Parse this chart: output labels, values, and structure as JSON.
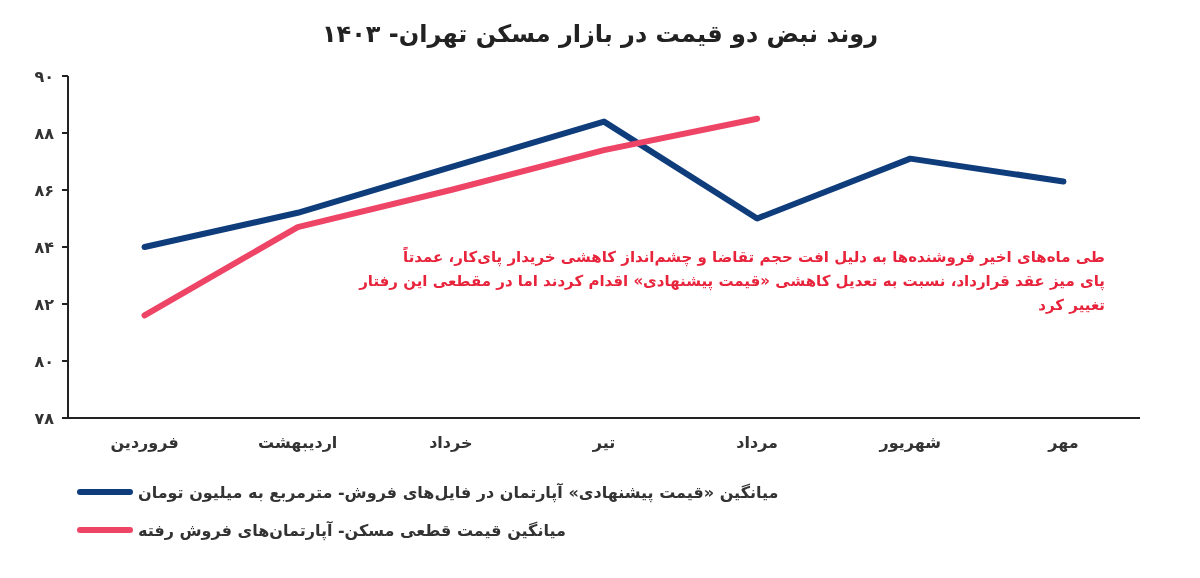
{
  "chart_data": {
    "type": "line",
    "title": "روند نبض دو قیمت در بازار مسکن تهران- ۱۴۰۳",
    "categories": [
      "فروردین",
      "اردیبهشت",
      "خرداد",
      "تیر",
      "مرداد",
      "شهریور",
      "مهر"
    ],
    "series": [
      {
        "name": "میانگین «قیمت پیشنهادی» آپارتمان در فایل‌های فروش- مترمربع به میلیون تومان",
        "color": "#0f3d7c",
        "values": [
          84.0,
          85.2,
          86.8,
          88.4,
          85.0,
          87.1,
          86.3
        ]
      },
      {
        "name": "میانگین قیمت قطعی مسکن- آپارتمان‌های فروش رفته",
        "color": "#ee4466",
        "values": [
          81.6,
          84.7,
          86.0,
          87.4,
          88.5,
          null,
          null
        ]
      }
    ],
    "ylim": [
      78,
      90
    ],
    "yticks": [
      {
        "value": 78,
        "label": "۷۸"
      },
      {
        "value": 80,
        "label": "۸۰"
      },
      {
        "value": 82,
        "label": "۸۲"
      },
      {
        "value": 84,
        "label": "۸۴"
      },
      {
        "value": 86,
        "label": "۸۶"
      },
      {
        "value": 88,
        "label": "۸۸"
      },
      {
        "value": 90,
        "label": "۹۰"
      }
    ],
    "annotations": [
      "طی ماه‌های اخیر فروشنده‌ها به دلیل افت حجم تقاضا و چشم‌انداز کاهشی خریدار پای‌کار، عمدتاً پای میز عقد قرارداد، نسبت به تعدیل کاهشی «قیمت پیشنهادی» اقدام کردند اما در مقطعی این رفتار تغییر کرد"
    ],
    "legend": "bottom"
  }
}
